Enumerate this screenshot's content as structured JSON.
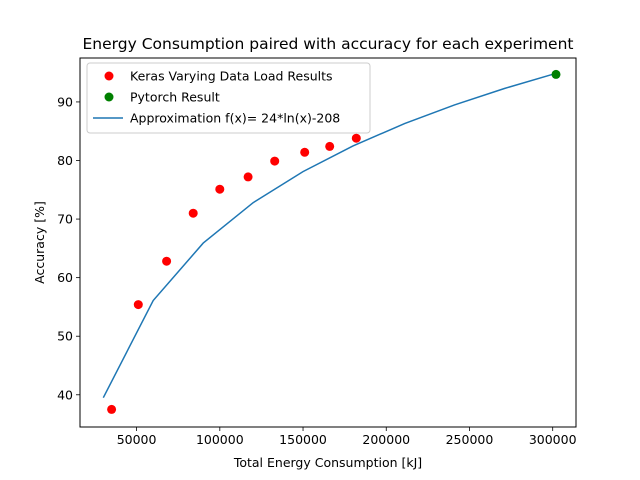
{
  "chart_data": {
    "type": "scatter",
    "title": "Energy Consumption paired with accuracy for each experiment",
    "xlabel": "Total Energy Consumption [kJ]",
    "ylabel": "Accuracy [%]",
    "xlim": [
      16000,
      314000
    ],
    "ylim": [
      34.5,
      97.5
    ],
    "xticks": [
      50000,
      100000,
      150000,
      200000,
      250000,
      300000
    ],
    "yticks": [
      40,
      50,
      60,
      70,
      80,
      90
    ],
    "grid": false,
    "legend_position": "top-left",
    "series": [
      {
        "name": "Keras Varying Data Load Results",
        "kind": "scatter",
        "color": "#ff0000",
        "x": [
          35000,
          51000,
          68000,
          84000,
          100000,
          117000,
          133000,
          151000,
          166000,
          182000
        ],
        "y": [
          37.5,
          55.4,
          62.8,
          71.0,
          75.1,
          77.2,
          79.9,
          81.4,
          82.4,
          83.8
        ]
      },
      {
        "name": "Pytorch Result",
        "kind": "scatter",
        "color": "#008000",
        "x": [
          302000
        ],
        "y": [
          94.7
        ]
      },
      {
        "name": "Approximation f(x)= 24*ln(x)-208",
        "kind": "line",
        "color": "#1f77b4",
        "x": [
          30000,
          60000,
          90000,
          120000,
          150000,
          180000,
          211000,
          241000,
          271000,
          301000
        ],
        "y": [
          39.5,
          56.1,
          65.9,
          72.8,
          78.1,
          82.5,
          86.3,
          89.5,
          92.3,
          94.8
        ]
      }
    ]
  }
}
